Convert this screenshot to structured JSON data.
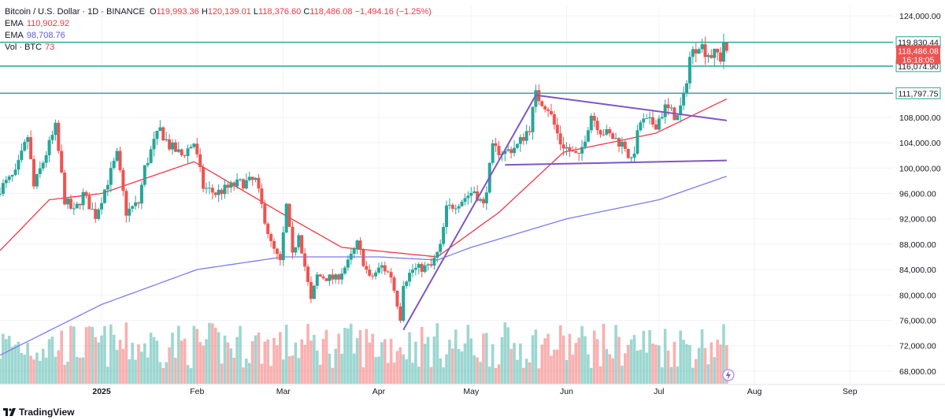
{
  "header": {
    "symbol": "Bitcoin / U.S. Dollar · 1D · BINANCE",
    "open_label": "O",
    "open": "119,993.36",
    "high_label": "H",
    "high": "120,139.01",
    "low_label": "L",
    "low": "118,376.60",
    "close_label": "C",
    "close": "118,486.08",
    "change": "−1,494.16 (−1.25%)",
    "ema1_label": "EMA",
    "ema1_value": "110,902.92",
    "ema2_label": "EMA",
    "ema2_value": "98,708.76",
    "vol_label": "Vol · BTC",
    "vol_value": "73"
  },
  "branding": {
    "name": "TradingView"
  },
  "colors": {
    "up": "#26a69a",
    "down": "#ef5350",
    "ema_fast": "#f23645",
    "ema_slow": "#7b7bf0",
    "hline": "#26a69a",
    "pattern": "#7e57c2",
    "grid": "#f0f3fa",
    "axis_text": "#131722"
  },
  "chart_data": {
    "type": "candlestick",
    "price_axis": {
      "ticks": [
        68000,
        72000,
        76000,
        80000,
        84000,
        88000,
        92000,
        96000,
        100000,
        104000,
        108000,
        112000,
        116000,
        120000,
        124000
      ],
      "tick_labels": [
        "68,000.00",
        "72,000.00",
        "76,000.00",
        "80,000.00",
        "84,000.00",
        "88,000.00",
        "92,000.00",
        "96,000.00",
        "100,000.00",
        "104,000.00",
        "108,000.00",
        "",
        "",
        "",
        "124,000.00"
      ],
      "ylim": [
        66000,
        125500
      ]
    },
    "time_axis": {
      "labels": [
        "2025",
        "Feb",
        "Mar",
        "Apr",
        "May",
        "Jun",
        "Jul",
        "Aug",
        "Sep"
      ],
      "label_dates": [
        "2025-01-01",
        "2025-02-01",
        "2025-03-01",
        "2025-04-01",
        "2025-05-01",
        "2025-06-01",
        "2025-07-01",
        "2025-08-01",
        "2025-09-01"
      ],
      "xlim": [
        "2024-11-29",
        "2025-09-15"
      ]
    },
    "ohlc_anchors": [
      [
        "2024-11-29",
        96800
      ],
      [
        "2024-12-04",
        99000
      ],
      [
        "2024-12-08",
        105000
      ],
      [
        "2024-12-10",
        97000
      ],
      [
        "2024-12-13",
        101000
      ],
      [
        "2024-12-17",
        106300
      ],
      [
        "2024-12-20",
        95000
      ],
      [
        "2024-12-23",
        93000
      ],
      [
        "2024-12-26",
        95800
      ],
      [
        "2024-12-30",
        92500
      ],
      [
        "2025-01-03",
        98000
      ],
      [
        "2025-01-06",
        102000
      ],
      [
        "2025-01-09",
        93000
      ],
      [
        "2025-01-13",
        94500
      ],
      [
        "2025-01-15",
        100000
      ],
      [
        "2025-01-18",
        104000
      ],
      [
        "2025-01-20",
        106000
      ],
      [
        "2025-01-23",
        103500
      ],
      [
        "2025-01-27",
        102000
      ],
      [
        "2025-01-31",
        104000
      ],
      [
        "2025-02-03",
        97000
      ],
      [
        "2025-02-07",
        96000
      ],
      [
        "2025-02-14",
        97500
      ],
      [
        "2025-02-20",
        98000
      ],
      [
        "2025-02-25",
        88000
      ],
      [
        "2025-02-28",
        85000
      ],
      [
        "2025-03-02",
        94000
      ],
      [
        "2025-03-04",
        86000
      ],
      [
        "2025-03-06",
        90000
      ],
      [
        "2025-03-10",
        79000
      ],
      [
        "2025-03-12",
        83000
      ],
      [
        "2025-03-18",
        82500
      ],
      [
        "2025-03-22",
        85000
      ],
      [
        "2025-03-25",
        88000
      ],
      [
        "2025-03-29",
        82500
      ],
      [
        "2025-04-02",
        84500
      ],
      [
        "2025-04-05",
        83000
      ],
      [
        "2025-04-08",
        76500
      ],
      [
        "2025-04-09",
        82000
      ],
      [
        "2025-04-12",
        84000
      ],
      [
        "2025-04-18",
        84500
      ],
      [
        "2025-04-21",
        87500
      ],
      [
        "2025-04-23",
        93500
      ],
      [
        "2025-04-28",
        95000
      ],
      [
        "2025-05-02",
        96500
      ],
      [
        "2025-05-05",
        94000
      ],
      [
        "2025-05-08",
        103000
      ],
      [
        "2025-05-12",
        102500
      ],
      [
        "2025-05-16",
        103500
      ],
      [
        "2025-05-20",
        106500
      ],
      [
        "2025-05-22",
        111500
      ],
      [
        "2025-05-26",
        109500
      ],
      [
        "2025-05-30",
        104000
      ],
      [
        "2025-06-05",
        101500
      ],
      [
        "2025-06-09",
        108500
      ],
      [
        "2025-06-12",
        106000
      ],
      [
        "2025-06-17",
        104500
      ],
      [
        "2025-06-20",
        103500
      ],
      [
        "2025-06-22",
        100800
      ],
      [
        "2025-06-25",
        107300
      ],
      [
        "2025-06-30",
        107000
      ],
      [
        "2025-07-03",
        109500
      ],
      [
        "2025-07-07",
        108000
      ],
      [
        "2025-07-09",
        111000
      ],
      [
        "2025-07-11",
        117500
      ],
      [
        "2025-07-14",
        119800
      ],
      [
        "2025-07-16",
        118500
      ],
      [
        "2025-07-18",
        117800
      ],
      [
        "2025-07-20",
        118000
      ],
      [
        "2025-07-21",
        117300
      ],
      [
        "2025-07-22",
        119980
      ],
      [
        "2025-07-23",
        118486.08
      ]
    ],
    "ema_fast_anchors": [
      [
        "2024-11-29",
        87000
      ],
      [
        "2024-12-15",
        95000
      ],
      [
        "2025-01-01",
        96000
      ],
      [
        "2025-01-31",
        101000
      ],
      [
        "2025-02-28",
        93000
      ],
      [
        "2025-03-20",
        87500
      ],
      [
        "2025-04-20",
        86000
      ],
      [
        "2025-05-10",
        93000
      ],
      [
        "2025-05-31",
        102500
      ],
      [
        "2025-06-30",
        105500
      ],
      [
        "2025-07-23",
        110902.92
      ]
    ],
    "ema_slow_anchors": [
      [
        "2024-11-29",
        70500
      ],
      [
        "2025-01-01",
        78500
      ],
      [
        "2025-02-01",
        84000
      ],
      [
        "2025-03-01",
        86000
      ],
      [
        "2025-04-01",
        86000
      ],
      [
        "2025-04-20",
        85500
      ],
      [
        "2025-05-01",
        87500
      ],
      [
        "2025-06-01",
        92000
      ],
      [
        "2025-07-01",
        95000
      ],
      [
        "2025-07-23",
        98708.76
      ]
    ],
    "horizontal_levels": [
      {
        "price": 119830.44,
        "label": "119,830.44"
      },
      {
        "price": 116074.9,
        "label": "116,074.90"
      },
      {
        "price": 111797.75,
        "label": "111,797.75"
      }
    ],
    "last_price": {
      "price": 118486.08,
      "label": "118,486.08",
      "countdown": "16:18:05"
    },
    "trendlines": [
      {
        "from": [
          "2025-04-09",
          74500
        ],
        "to": [
          "2025-05-22",
          111500
        ]
      },
      {
        "from": [
          "2025-05-22",
          111500
        ],
        "to": [
          "2025-07-23",
          107500
        ]
      },
      {
        "from": [
          "2025-05-12",
          100500
        ],
        "to": [
          "2025-07-23",
          101200
        ]
      }
    ],
    "volume": {
      "max_relative": 1.0
    }
  }
}
